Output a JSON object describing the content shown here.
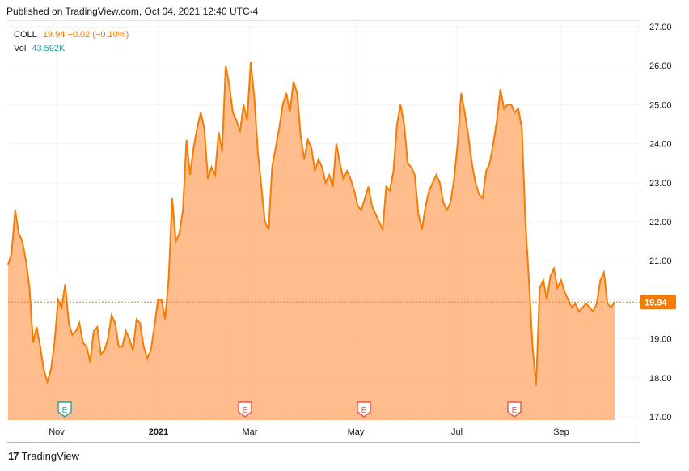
{
  "header": {
    "published": "Published on TradingView.com, Oct 04, 2021 12:40 UTC-4"
  },
  "legend": {
    "symbol": "COLL",
    "last": "19.94",
    "change": "−0.02 (−0.10%)",
    "vol_label": "Vol",
    "vol_value": "43.592K"
  },
  "price_tag": "19.94",
  "footer": {
    "brand": "TradingView"
  },
  "colors": {
    "line": "#f57c00",
    "fill": "#ffb27a",
    "grid": "#f0f3fa",
    "earnings_past": "#26a69a",
    "earnings_future": "#ef5350"
  },
  "chart_data": {
    "type": "area",
    "title": "",
    "symbol": "COLL",
    "y_range": [
      17.0,
      27.0
    ],
    "y_ticks": [
      "27.00",
      "26.00",
      "25.00",
      "24.00",
      "23.00",
      "22.00",
      "21.00",
      "20.00",
      "19.00",
      "18.00",
      "17.00"
    ],
    "x_ticks": [
      "Nov",
      "2021",
      "Mar",
      "May",
      "Jul",
      "Sep"
    ],
    "last_value": 19.94,
    "series": [
      {
        "values": [
          20.9,
          21.2,
          22.3,
          21.7,
          21.5,
          21.0,
          20.3,
          18.9,
          19.3,
          18.8,
          18.2,
          17.9,
          18.2,
          18.9,
          20.0,
          19.8,
          20.4,
          19.4,
          19.1,
          19.2,
          19.4,
          18.9,
          18.8,
          18.4,
          19.2,
          19.3,
          18.6,
          18.7,
          19.0,
          19.6,
          19.4,
          18.8,
          18.8,
          19.2,
          19.0,
          18.7,
          19.5,
          19.4,
          18.8,
          18.5,
          18.7,
          19.3,
          20.0,
          20.0,
          19.5,
          20.5,
          22.6,
          21.5,
          21.7,
          22.3,
          24.1,
          23.2,
          23.9,
          24.4,
          24.8,
          24.4,
          23.1,
          23.4,
          23.2,
          24.3,
          23.8,
          26.0,
          25.5,
          24.8,
          24.6,
          24.3,
          25.0,
          24.6,
          26.1,
          25.2,
          23.8,
          22.9,
          22.0,
          21.8,
          23.4,
          23.9,
          24.4,
          25.0,
          25.3,
          24.8,
          25.6,
          25.3,
          24.2,
          23.6,
          24.1,
          23.9,
          23.3,
          23.6,
          23.4,
          23.0,
          23.2,
          22.9,
          24.0,
          23.5,
          23.1,
          23.3,
          23.1,
          22.8,
          22.4,
          22.3,
          22.6,
          22.9,
          22.4,
          22.2,
          22.0,
          21.8,
          22.9,
          22.8,
          23.3,
          24.5,
          25.0,
          24.5,
          23.5,
          23.4,
          23.2,
          22.2,
          21.8,
          22.4,
          22.8,
          23.0,
          23.2,
          23.0,
          22.5,
          22.3,
          22.5,
          23.1,
          24.0,
          25.3,
          24.8,
          24.2,
          23.5,
          23.0,
          22.7,
          22.6,
          23.3,
          23.5,
          24.0,
          24.6,
          25.4,
          24.9,
          25.0,
          25.0,
          24.8,
          24.9,
          24.4,
          22.0,
          20.5,
          18.8,
          17.8,
          20.3,
          20.5,
          20.0,
          20.6,
          20.8,
          20.3,
          20.5,
          20.2,
          20.0,
          19.8,
          19.9,
          19.7,
          19.8,
          19.9,
          19.8,
          19.7,
          19.9,
          20.5,
          20.7,
          19.9,
          19.8,
          19.94
        ]
      }
    ],
    "earnings_markers": [
      {
        "label": "E",
        "x_label": "Nov",
        "kind": "past"
      },
      {
        "label": "E",
        "x_label": "Mar",
        "kind": "future"
      },
      {
        "label": "E",
        "x_label": "May",
        "kind": "future"
      },
      {
        "label": "E",
        "x_label": "Aug",
        "kind": "future"
      }
    ]
  }
}
